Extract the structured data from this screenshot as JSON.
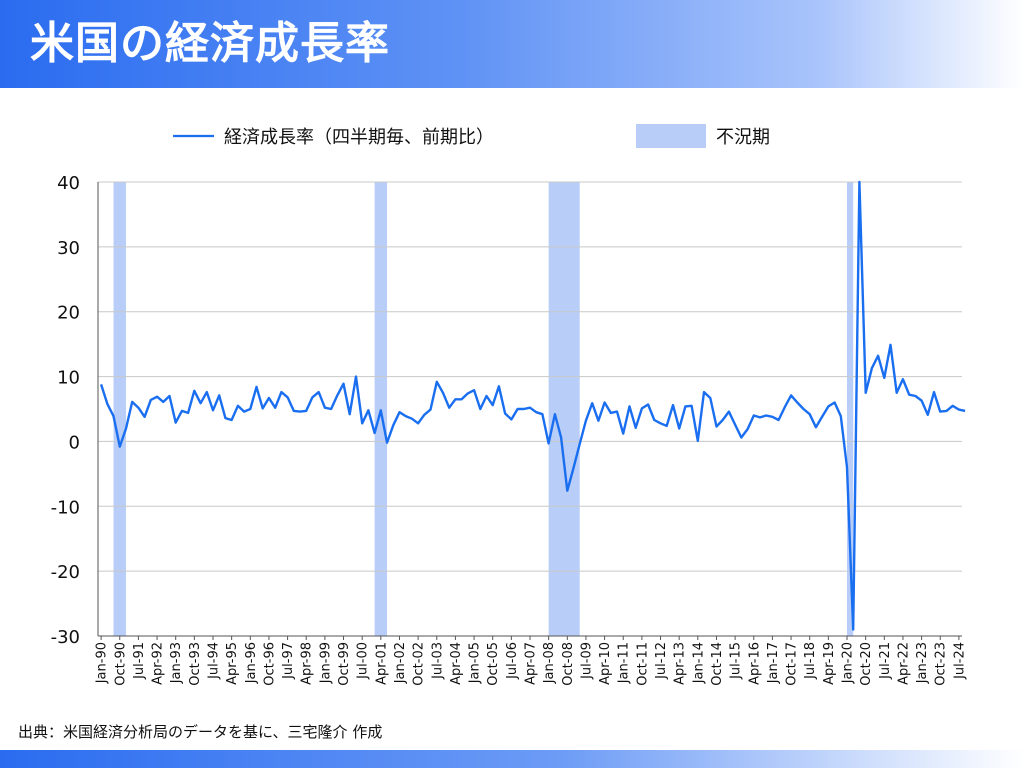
{
  "title": "米国の経済成長率",
  "source": "出典：米国経済分析局のデータを基に、三宅隆介 作成",
  "colors": {
    "title_bar": "#2a6cf0",
    "line": "#1a6ef0",
    "recession": "#b8cef8",
    "grid": "#c8c8c8"
  },
  "chart_data": {
    "type": "line",
    "title": "",
    "xlabel": "",
    "ylabel": "",
    "ylim": [
      -30,
      40
    ],
    "yticks": [
      "40",
      "30",
      "20",
      "10",
      "0",
      "-10",
      "-20",
      "-30"
    ],
    "grid": true,
    "legend_position": "top-center",
    "legend": {
      "line_label": "経済成長率（四半期毎、前期比）",
      "band_label": "不況期"
    },
    "x_tick_labels": [
      "Jan-90",
      "Oct-90",
      "Jul-91",
      "Apr-92",
      "Jan-93",
      "Oct-93",
      "Jul-94",
      "Apr-95",
      "Jan-96",
      "Oct-96",
      "Jul-97",
      "Apr-98",
      "Jan-99",
      "Oct-99",
      "Jul-00",
      "Apr-01",
      "Jan-02",
      "Oct-02",
      "Jul-03",
      "Apr-04",
      "Jan-05",
      "Oct-05",
      "Jul-06",
      "Apr-07",
      "Jan-08",
      "Oct-08",
      "Jul-09",
      "Apr-10",
      "Jan-11",
      "Oct-11",
      "Jul-12",
      "Apr-13",
      "Jan-14",
      "Oct-14",
      "Jul-15",
      "Apr-16",
      "Jan-17",
      "Oct-17",
      "Jul-18",
      "Apr-19",
      "Jan-20",
      "Oct-20",
      "Jul-21",
      "Apr-22",
      "Jan-23",
      "Oct-23",
      "Jul-24"
    ],
    "x_start": "Jan-90",
    "x_end": "Jul-24",
    "recessions": [
      {
        "start": "Jul-90",
        "end": "Jan-91"
      },
      {
        "start": "Jan-01",
        "end": "Jul-01"
      },
      {
        "start": "Jan-08",
        "end": "Apr-09"
      },
      {
        "start": "Jan-20",
        "end": "Apr-20"
      }
    ],
    "series": [
      {
        "name": "経済成長率（四半期毎、前期比）",
        "values": [
          8.8,
          5.8,
          3.9,
          -0.8,
          2.0,
          6.1,
          5.2,
          3.8,
          6.4,
          6.9,
          6.1,
          7.0,
          2.9,
          4.7,
          4.4,
          7.8,
          5.9,
          7.6,
          4.8,
          7.1,
          3.6,
          3.3,
          5.5,
          4.6,
          5.0,
          8.4,
          5.1,
          6.7,
          5.2,
          7.6,
          6.8,
          4.7,
          4.6,
          4.7,
          6.8,
          7.6,
          5.2,
          5.0,
          7.1,
          8.9,
          4.2,
          10.0,
          2.8,
          4.8,
          1.3,
          4.8,
          -0.2,
          2.5,
          4.5,
          3.9,
          3.5,
          2.8,
          4.1,
          4.9,
          9.2,
          7.5,
          5.2,
          6.5,
          6.5,
          7.4,
          7.9,
          5.0,
          7.0,
          5.6,
          8.5,
          4.3,
          3.4,
          5.0,
          5.0,
          5.2,
          4.5,
          4.2,
          -0.3,
          4.2,
          0.6,
          -7.6,
          -4.1,
          -0.4,
          3.2,
          5.9,
          3.2,
          6.0,
          4.4,
          4.6,
          1.2,
          5.4,
          2.1,
          5.1,
          5.7,
          3.3,
          2.8,
          2.4,
          5.6,
          2.0,
          5.4,
          5.5,
          0.1,
          7.6,
          6.7,
          2.3,
          3.3,
          4.6,
          2.6,
          0.6,
          1.9,
          4.0,
          3.7,
          4.0,
          3.8,
          3.3,
          5.3,
          7.1,
          6.0,
          5.0,
          4.2,
          2.2,
          3.8,
          5.4,
          6.0,
          3.9,
          -4.0,
          -29.0,
          40.0,
          7.5,
          11.3,
          13.2,
          9.8,
          14.9,
          7.5,
          9.6,
          7.2,
          7.0,
          6.3,
          4.1,
          7.6,
          4.6,
          4.7,
          5.5,
          4.9,
          4.7
        ]
      }
    ]
  }
}
